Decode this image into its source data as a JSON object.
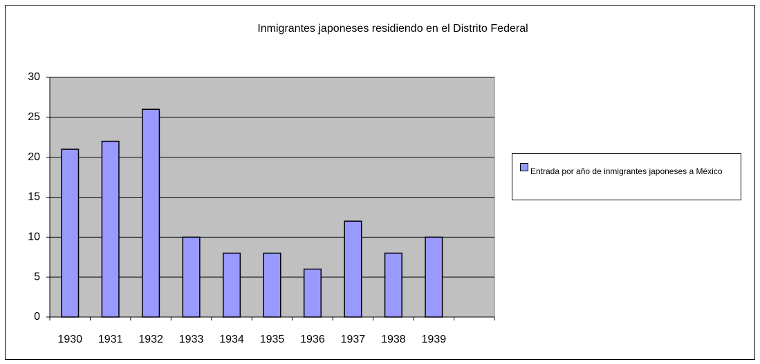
{
  "chart_data": {
    "type": "bar",
    "title": "Inmigrantes japoneses residiendo en el Distrito Federal",
    "categories": [
      "1930",
      "1931",
      "1932",
      "1933",
      "1934",
      "1935",
      "1936",
      "1937",
      "1938",
      "1939",
      null
    ],
    "series": [
      {
        "name": "Entrada por año de inmigrantes japoneses a México",
        "color": "#9999ff",
        "values": [
          21,
          22,
          26,
          10,
          8,
          8,
          6,
          12,
          8,
          10,
          null
        ]
      }
    ],
    "ylim": [
      0,
      30
    ],
    "yticks": [
      0,
      5,
      10,
      15,
      20,
      25,
      30
    ],
    "grid": true,
    "legend": "right"
  }
}
